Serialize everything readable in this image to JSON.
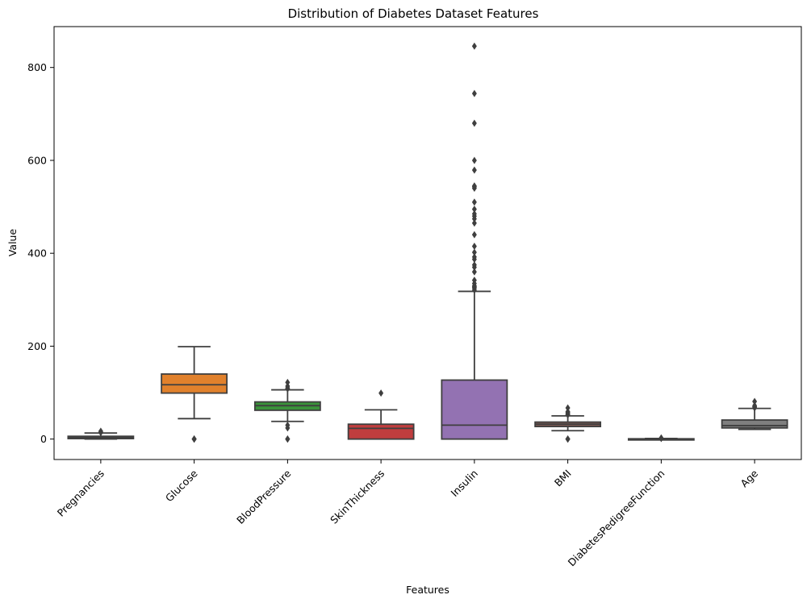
{
  "chart_data": {
    "type": "box",
    "title": "Distribution of Diabetes Dataset Features",
    "xlabel": "Features",
    "ylabel": "Value",
    "ylim": [
      -44,
      888
    ],
    "yticks": [
      0,
      200,
      400,
      600,
      800
    ],
    "grid": false,
    "legend": "none",
    "categories": [
      "Pregnancies",
      "Glucose",
      "BloodPressure",
      "SkinThickness",
      "Insulin",
      "BMI",
      "DiabetesPedigreeFunction",
      "Age"
    ],
    "colors": [
      "#3274a1",
      "#e1812c",
      "#3a923a",
      "#c03d3e",
      "#9372b2",
      "#845b53",
      "#d684bd",
      "#7f7f7f"
    ],
    "boxes": [
      {
        "name": "Pregnancies",
        "whislo": 0,
        "q1": 1,
        "med": 3,
        "q3": 6,
        "whishi": 13,
        "fliers": [
          14,
          15,
          17
        ]
      },
      {
        "name": "Glucose",
        "whislo": 44,
        "q1": 99,
        "med": 117,
        "q3": 140,
        "whishi": 199,
        "fliers": [
          0,
          0,
          0,
          0,
          0
        ]
      },
      {
        "name": "BloodPressure",
        "whislo": 38,
        "q1": 62,
        "med": 72,
        "q3": 80,
        "whishi": 106,
        "fliers": [
          0,
          0,
          0,
          24,
          30,
          108,
          110,
          114,
          122
        ]
      },
      {
        "name": "SkinThickness",
        "whislo": 0,
        "q1": 0,
        "med": 23,
        "q3": 32,
        "whishi": 63,
        "fliers": [
          99
        ]
      },
      {
        "name": "Insulin",
        "whislo": 0,
        "q1": 0,
        "med": 30,
        "q3": 127,
        "whishi": 318,
        "fliers": [
          321,
          325,
          326,
          328,
          330,
          335,
          342,
          360,
          370,
          375,
          387,
          392,
          402,
          415,
          440,
          465,
          474,
          480,
          485,
          495,
          510,
          540,
          543,
          545,
          579,
          600,
          680,
          744,
          846
        ]
      },
      {
        "name": "BMI",
        "whislo": 18,
        "q1": 27,
        "med": 32,
        "q3": 36.6,
        "whishi": 50,
        "fliers": [
          0,
          0,
          0,
          52,
          53,
          55,
          57,
          59,
          67
        ]
      },
      {
        "name": "DiabetesPedigreeFunction",
        "whislo": 0.08,
        "q1": 0.24,
        "med": 0.37,
        "q3": 0.63,
        "whishi": 1.2,
        "fliers": [
          1.3,
          1.5,
          1.7,
          2.1,
          2.4
        ]
      },
      {
        "name": "Age",
        "whislo": 21,
        "q1": 24,
        "med": 29,
        "q3": 41,
        "whishi": 66,
        "fliers": [
          67,
          69,
          70,
          72,
          81
        ]
      }
    ]
  }
}
